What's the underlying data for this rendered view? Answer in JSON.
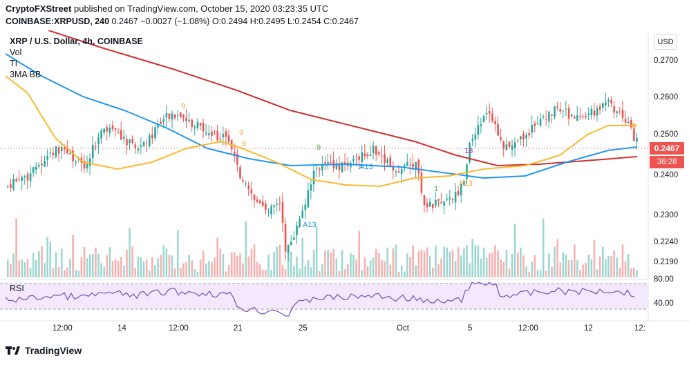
{
  "header": {
    "publisher": "CryptoFXStreet",
    "published_text": "published on TradingView.com, October 15, 2020 03:23:35 UTC",
    "symbol": "COINBASE:XRPUSD, 240",
    "price": "0.2467",
    "change": "−0.0027 (−1.08%)",
    "open": "O:0.2494",
    "high": "H:0.2495",
    "low": "L:0.2454",
    "close": "C:0.2467"
  },
  "legend": {
    "title": "XRP / U.S. Dollar, 4h, COINBASE",
    "items": [
      "Vol",
      "TI",
      "3MA BB"
    ]
  },
  "currency_button": "USD",
  "price_axis": {
    "labels": [
      "0.2700",
      "0.2600",
      "0.2500",
      "0.2400",
      "0.2300",
      "0.2240",
      "0.2190"
    ],
    "current_price": "0.2467",
    "countdown": "36:28",
    "ma_price_tag_color": "#d32f2f"
  },
  "rsi": {
    "label": "RSI",
    "labels": [
      "80.00",
      "40.00"
    ]
  },
  "time_axis": {
    "labels": [
      "12:00",
      "14",
      "12:00",
      "21",
      "25",
      "Oct",
      "5",
      "12:00",
      "12",
      "12:"
    ]
  },
  "annotations": {
    "seq_labels": [
      "9",
      "9",
      "9",
      "9",
      "A13",
      "A13",
      "1",
      "13",
      "S13",
      "9"
    ]
  },
  "colors": {
    "up": "#26a69a",
    "down": "#ef5350",
    "ma_red": "#d32f2f",
    "ma_blue": "#2196f3",
    "ma_orange": "#fbb829",
    "rsi_line": "#7e57c2",
    "rsi_band": "#f3e8fd"
  },
  "footer": {
    "brand": "TradingView"
  }
}
